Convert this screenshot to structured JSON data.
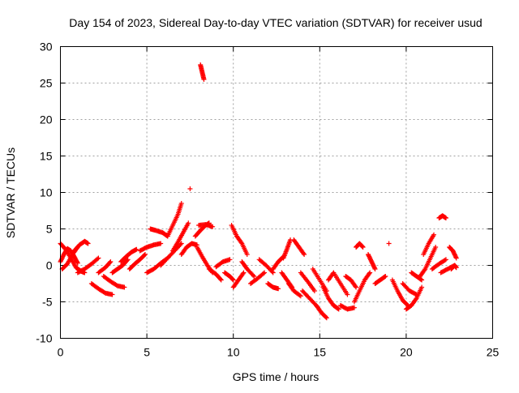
{
  "chart_data": {
    "type": "scatter",
    "title": "Day 154 of 2023, Sidereal Day-to-day VTEC variation (SDTVAR) for receiver usud",
    "xlabel": "GPS time / hours",
    "ylabel": "SDTVAR / TECUs",
    "xlim": [
      0,
      25
    ],
    "ylim": [
      -10,
      30
    ],
    "xticks": [
      0,
      5,
      10,
      15,
      20,
      25
    ],
    "yticks": [
      -10,
      -5,
      0,
      5,
      10,
      15,
      20,
      25,
      30
    ],
    "xtick_labels": [
      "0",
      "5",
      "10",
      "15",
      "20",
      "25"
    ],
    "ytick_labels": [
      "-10",
      "-5",
      "0",
      "5",
      "10",
      "15",
      "20",
      "25",
      "30"
    ],
    "grid": true,
    "marker": "+",
    "marker_color": "#ff0000",
    "series": [
      {
        "name": "SDTVAR",
        "tracks": [
          {
            "x": [
              0.0,
              0.3,
              0.6,
              0.9,
              1.2,
              1.4
            ],
            "y": [
              3.0,
              2.2,
              1.0,
              -0.3,
              -0.8,
              -1.0
            ]
          },
          {
            "x": [
              0.0,
              0.2,
              0.4,
              0.6,
              0.8,
              1.0
            ],
            "y": [
              0.5,
              1.5,
              2.3,
              2.0,
              1.2,
              0.3
            ]
          },
          {
            "x": [
              0.1,
              0.4,
              0.7,
              1.0
            ],
            "y": [
              -0.5,
              0.2,
              1.5,
              2.5
            ]
          },
          {
            "x": [
              0.8,
              1.1,
              1.4,
              1.6
            ],
            "y": [
              2.0,
              2.8,
              3.3,
              3.0
            ]
          },
          {
            "x": [
              1.0,
              1.4,
              1.8,
              2.2
            ],
            "y": [
              -1.0,
              -0.5,
              0.2,
              1.0
            ]
          },
          {
            "x": [
              1.8,
              2.2,
              2.6,
              3.0
            ],
            "y": [
              -2.5,
              -3.2,
              -3.8,
              -4.0
            ]
          },
          {
            "x": [
              2.2,
              2.6,
              2.9
            ],
            "y": [
              -1.0,
              -0.3,
              0.5
            ]
          },
          {
            "x": [
              2.5,
              2.9,
              3.3,
              3.7
            ],
            "y": [
              -1.5,
              -2.2,
              -2.8,
              -3.0
            ]
          },
          {
            "x": [
              3.0,
              3.3,
              3.6,
              3.9
            ],
            "y": [
              -1.0,
              -0.5,
              0.0,
              0.8
            ]
          },
          {
            "x": [
              3.5,
              3.8,
              4.1,
              4.4
            ],
            "y": [
              0.5,
              1.2,
              1.8,
              2.2
            ]
          },
          {
            "x": [
              4.0,
              4.3,
              4.6,
              4.9
            ],
            "y": [
              -0.5,
              0.2,
              0.8,
              1.5
            ]
          },
          {
            "x": [
              4.6,
              5.0,
              5.4,
              5.8
            ],
            "y": [
              2.0,
              2.5,
              2.8,
              3.0
            ]
          },
          {
            "x": [
              5.0,
              5.4,
              5.8,
              6.2
            ],
            "y": [
              -1.0,
              -0.5,
              0.3,
              1.0
            ]
          },
          {
            "x": [
              5.2,
              5.5,
              5.9,
              6.2
            ],
            "y": [
              5.0,
              4.8,
              4.5,
              4.0
            ]
          },
          {
            "x": [
              5.8,
              6.2,
              6.6,
              7.0
            ],
            "y": [
              0.0,
              1.0,
              2.0,
              3.0
            ]
          },
          {
            "x": [
              6.2,
              6.5,
              6.8,
              7.0
            ],
            "y": [
              4.0,
              5.5,
              7.0,
              8.5
            ]
          },
          {
            "x": [
              6.5,
              6.8,
              7.1,
              7.4
            ],
            "y": [
              2.0,
              3.2,
              4.5,
              5.8
            ]
          },
          {
            "x": [
              7.0,
              7.3,
              7.6,
              7.9
            ],
            "y": [
              1.5,
              2.5,
              3.0,
              2.8
            ]
          },
          {
            "x": [
              7.8,
              8.1,
              8.4,
              8.6
            ],
            "y": [
              4.0,
              4.8,
              5.5,
              5.8
            ]
          },
          {
            "x": [
              8.0,
              8.4,
              8.8
            ],
            "y": [
              5.5,
              5.6,
              5.3
            ]
          },
          {
            "x": [
              7.9,
              8.2,
              8.5,
              8.8
            ],
            "y": [
              2.5,
              1.2,
              0.0,
              -1.0
            ]
          },
          {
            "x": [
              8.6,
              9.0,
              9.3
            ],
            "y": [
              -0.5,
              -1.2,
              -2.0
            ]
          },
          {
            "x": [
              8.1,
              8.2,
              8.3
            ],
            "y": [
              27.5,
              26.5,
              25.5
            ]
          },
          {
            "x": [
              7.5
            ],
            "y": [
              10.5
            ]
          },
          {
            "x": [
              9.0,
              9.4,
              9.8
            ],
            "y": [
              -0.2,
              0.5,
              0.8
            ]
          },
          {
            "x": [
              9.5,
              9.8,
              10.0
            ],
            "y": [
              -1.0,
              -1.5,
              -2.0
            ]
          },
          {
            "x": [
              9.9,
              10.2,
              10.5,
              10.8
            ],
            "y": [
              5.5,
              4.0,
              3.0,
              1.5
            ]
          },
          {
            "x": [
              10.0,
              10.3,
              10.6
            ],
            "y": [
              -3.0,
              -2.0,
              -1.0
            ]
          },
          {
            "x": [
              10.5,
              10.8,
              11.2
            ],
            "y": [
              0.5,
              -0.5,
              -1.5
            ]
          },
          {
            "x": [
              11.0,
              11.4,
              11.8
            ],
            "y": [
              -2.5,
              -1.8,
              -1.0
            ]
          },
          {
            "x": [
              11.5,
              11.9,
              12.3
            ],
            "y": [
              0.8,
              0.0,
              -1.0
            ]
          },
          {
            "x": [
              12.0,
              12.3,
              12.6
            ],
            "y": [
              -2.5,
              -3.0,
              -3.2
            ]
          },
          {
            "x": [
              12.3,
              12.6,
              12.9
            ],
            "y": [
              -0.5,
              0.5,
              1.2
            ]
          },
          {
            "x": [
              12.8,
              13.1,
              13.4
            ],
            "y": [
              -1.0,
              -2.0,
              -3.0
            ]
          },
          {
            "x": [
              12.9,
              13.1,
              13.3
            ],
            "y": [
              1.0,
              2.2,
              3.5
            ]
          },
          {
            "x": [
              13.2,
              13.5,
              13.9
            ],
            "y": [
              -2.5,
              -3.5,
              -4.2
            ]
          },
          {
            "x": [
              13.5,
              13.8,
              14.1
            ],
            "y": [
              3.5,
              2.5,
              1.5
            ]
          },
          {
            "x": [
              13.9,
              14.3,
              14.7
            ],
            "y": [
              -1.0,
              -2.2,
              -3.5
            ]
          },
          {
            "x": [
              14.0,
              14.4,
              14.8
            ],
            "y": [
              -3.5,
              -4.5,
              -5.5
            ]
          },
          {
            "x": [
              14.6,
              15.0,
              15.4
            ],
            "y": [
              -0.5,
              -2.0,
              -3.5
            ]
          },
          {
            "x": [
              14.8,
              15.1,
              15.4
            ],
            "y": [
              -5.5,
              -6.5,
              -7.2
            ]
          },
          {
            "x": [
              15.2,
              15.5,
              15.8,
              16.1
            ],
            "y": [
              -3.0,
              -4.5,
              -5.5,
              -6.0
            ]
          },
          {
            "x": [
              15.5,
              15.8,
              16.2,
              16.6
            ],
            "y": [
              -2.0,
              -1.0,
              -2.5,
              -4.0
            ]
          },
          {
            "x": [
              16.2,
              16.6,
              17.0
            ],
            "y": [
              -5.5,
              -6.0,
              -5.8
            ]
          },
          {
            "x": [
              16.5,
              16.8,
              17.1
            ],
            "y": [
              -1.5,
              -2.0,
              -3.0
            ]
          },
          {
            "x": [
              17.0,
              17.3,
              17.6,
              17.9
            ],
            "y": [
              -5.0,
              -3.5,
              -2.0,
              -1.0
            ]
          },
          {
            "x": [
              17.1,
              17.3,
              17.5
            ],
            "y": [
              2.5,
              3.0,
              2.5
            ]
          },
          {
            "x": [
              17.8,
              18.0,
              18.2
            ],
            "y": [
              1.5,
              0.5,
              -0.5
            ]
          },
          {
            "x": [
              18.2,
              18.5,
              18.8
            ],
            "y": [
              -2.5,
              -2.0,
              -1.5
            ]
          },
          {
            "x": [
              19.0
            ],
            "y": [
              3.0
            ]
          },
          {
            "x": [
              19.2,
              19.5,
              19.8,
              20.1
            ],
            "y": [
              -2.0,
              -3.5,
              -4.8,
              -5.5
            ]
          },
          {
            "x": [
              19.8,
              20.2,
              20.6
            ],
            "y": [
              -2.5,
              -3.5,
              -4.0
            ]
          },
          {
            "x": [
              20.0,
              20.3,
              20.6,
              20.9
            ],
            "y": [
              -6.0,
              -5.5,
              -4.5,
              -3.0
            ]
          },
          {
            "x": [
              20.3,
              20.6,
              20.9
            ],
            "y": [
              -1.0,
              -1.5,
              -2.0
            ]
          },
          {
            "x": [
              20.8,
              21.1,
              21.4,
              21.7
            ],
            "y": [
              -1.5,
              -0.5,
              1.0,
              2.5
            ]
          },
          {
            "x": [
              21.0,
              21.3,
              21.6
            ],
            "y": [
              1.5,
              3.0,
              4.2
            ]
          },
          {
            "x": [
              21.5,
              21.9,
              22.3
            ],
            "y": [
              -0.5,
              0.2,
              0.8
            ]
          },
          {
            "x": [
              21.9,
              22.1,
              22.3
            ],
            "y": [
              6.5,
              6.8,
              6.5
            ]
          },
          {
            "x": [
              22.0,
              22.4,
              22.8
            ],
            "y": [
              -1.0,
              -0.5,
              0.0
            ]
          },
          {
            "x": [
              22.5,
              22.7,
              22.9
            ],
            "y": [
              2.5,
              2.0,
              1.0
            ]
          },
          {
            "x": [
              22.6,
              22.8,
              22.9
            ],
            "y": [
              -0.5,
              0.0,
              -0.3
            ]
          }
        ]
      }
    ]
  }
}
